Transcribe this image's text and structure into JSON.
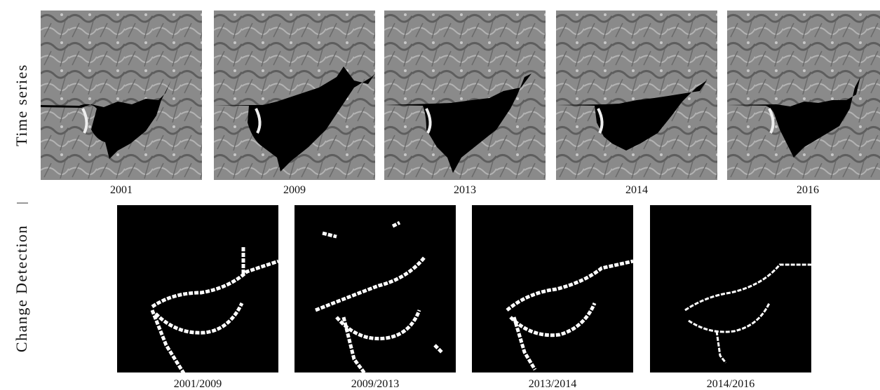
{
  "time_series": {
    "label": "Time series",
    "years": [
      "2001",
      "2009",
      "2013",
      "2014",
      "2016"
    ]
  },
  "change_detection": {
    "label": "Change Detection",
    "pairs": [
      "2001/2009",
      "2009/2013",
      "2013/2014",
      "2014/2016"
    ]
  }
}
